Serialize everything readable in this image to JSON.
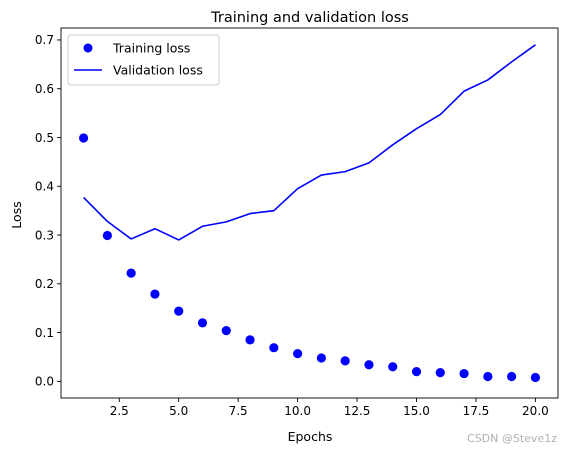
{
  "chart_data": {
    "type": "line",
    "title": "Training and validation loss",
    "xlabel": "Epochs",
    "ylabel": "Loss",
    "xlim": [
      0.05,
      20.95
    ],
    "ylim": [
      -0.0341,
      0.7245
    ],
    "xticks": [
      2.5,
      5.0,
      7.5,
      10.0,
      12.5,
      15.0,
      17.5,
      20.0
    ],
    "xtick_labels": [
      "2.5",
      "5.0",
      "7.5",
      "10.0",
      "12.5",
      "15.0",
      "17.5",
      "20.0"
    ],
    "yticks": [
      0.0,
      0.1,
      0.2,
      0.3,
      0.4,
      0.5,
      0.6,
      0.7
    ],
    "ytick_labels": [
      "0.0",
      "0.1",
      "0.2",
      "0.3",
      "0.4",
      "0.5",
      "0.6",
      "0.7"
    ],
    "grid": false,
    "legend_position": "upper-left",
    "x": [
      1,
      2,
      3,
      4,
      5,
      6,
      7,
      8,
      9,
      10,
      11,
      12,
      13,
      14,
      15,
      16,
      17,
      18,
      19,
      20
    ],
    "series": [
      {
        "name": "Training loss",
        "style": "markers",
        "color": "#0000ff",
        "values": [
          0.499,
          0.299,
          0.222,
          0.179,
          0.144,
          0.12,
          0.104,
          0.085,
          0.069,
          0.057,
          0.048,
          0.042,
          0.034,
          0.03,
          0.02,
          0.018,
          0.016,
          0.01,
          0.01,
          0.008
        ]
      },
      {
        "name": "Validation loss",
        "style": "line",
        "color": "#0000ff",
        "values": [
          0.377,
          0.328,
          0.292,
          0.313,
          0.29,
          0.318,
          0.327,
          0.344,
          0.35,
          0.395,
          0.423,
          0.43,
          0.448,
          0.485,
          0.518,
          0.547,
          0.595,
          0.618,
          0.655,
          0.69
        ]
      }
    ]
  },
  "watermark": "CSDN @Steve1z"
}
